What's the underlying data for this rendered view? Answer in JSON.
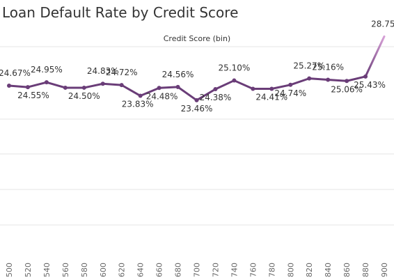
{
  "chart_data": {
    "type": "line",
    "title": "Loan Default Rate by Credit Score",
    "xlabel": "Credit Score (bin)",
    "ylabel": "",
    "categories": [
      "500",
      "520",
      "540",
      "560",
      "580",
      "600",
      "620",
      "640",
      "660",
      "680",
      "700",
      "720",
      "740",
      "760",
      "780",
      "800",
      "820",
      "840",
      "860",
      "880",
      "900"
    ],
    "values": [
      24.67,
      24.55,
      24.95,
      24.5,
      24.5,
      24.83,
      24.72,
      23.83,
      24.48,
      24.56,
      23.46,
      24.38,
      25.1,
      24.41,
      24.41,
      24.74,
      25.27,
      25.16,
      25.06,
      25.43,
      28.75
    ],
    "data_labels": [
      "24.67%",
      "24.55%",
      "24.95%",
      "",
      "24.50%",
      "24.83%",
      "24.72%",
      "23.83%",
      "24.48%",
      "24.56%",
      "23.46%",
      "24.38%",
      "25.10%",
      "",
      "24.41%",
      "24.74%",
      "25.27%",
      "25.16%",
      "25.06%",
      "25.43%",
      "28.75%"
    ],
    "grid": true,
    "colors": {
      "line": "#6a3d78",
      "line_end": "#d8a2d8",
      "grid": "#e6e6e6"
    }
  }
}
